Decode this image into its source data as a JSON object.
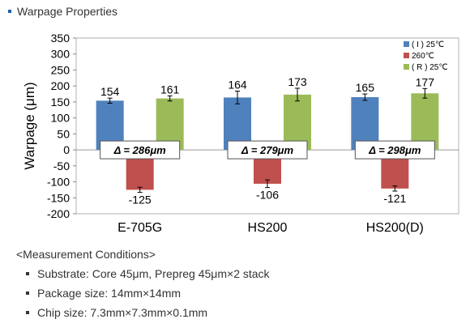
{
  "section": {
    "title": "Warpage Properties"
  },
  "chart_data": {
    "type": "bar",
    "categories": [
      "E-705G",
      "HS200",
      "HS200(D)"
    ],
    "series": [
      {
        "name": "( I ) 25℃",
        "color": "#4f81bd",
        "values": [
          154,
          164,
          165
        ],
        "errors": [
          8,
          20,
          10
        ]
      },
      {
        "name": "260℃",
        "color": "#c0504d",
        "values": [
          -125,
          -106,
          -121
        ],
        "errors": [
          8,
          12,
          8
        ]
      },
      {
        "name": "( R ) 25℃",
        "color": "#9bbb59",
        "values": [
          161,
          173,
          177
        ],
        "errors": [
          8,
          20,
          15
        ]
      }
    ],
    "ylabel": "Warpage (μm)",
    "ylim": [
      -200,
      350
    ],
    "yticks": [
      350,
      300,
      250,
      200,
      150,
      100,
      50,
      0,
      -50,
      -100,
      -150,
      -200
    ],
    "grid": false,
    "legend": "top-right",
    "annotations": [
      "Δ = 286μm",
      "Δ = 279μm",
      "Δ = 298μm"
    ]
  },
  "conditions": {
    "heading": "<Measurement Conditions>",
    "items": [
      "Substrate: Core 45μm, Prepreg 45μm×2 stack",
      "Package size: 14mm×14mm",
      "Chip size: 7.3mm×7.3mm×0.1mm"
    ]
  }
}
